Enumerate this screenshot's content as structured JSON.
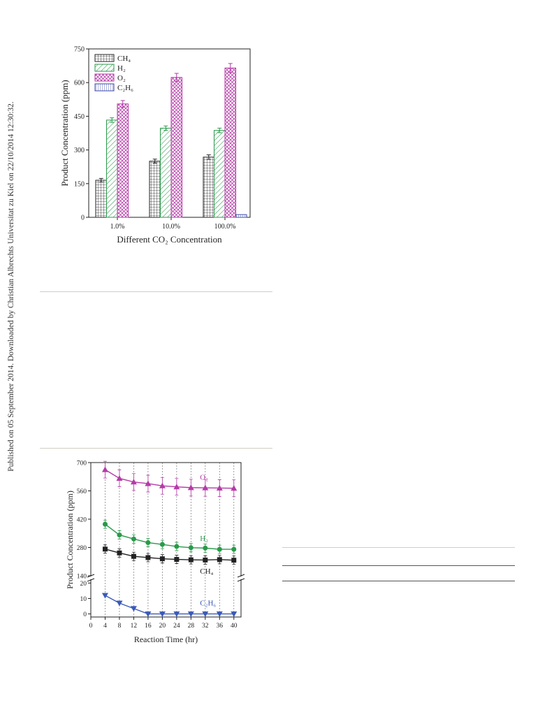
{
  "watermark": "Published on 05 September 2014. Downloaded by Christian Albrechts Universitat zu Kiel on 22/10/2014 12:30:32.",
  "chart_data": [
    {
      "type": "bar",
      "xlabel": "Different CO₂ Concentration",
      "ylabel": "Product Concentration (ppm)",
      "ylim": [
        0,
        750
      ],
      "yticks": [
        0,
        150,
        300,
        450,
        600,
        750
      ],
      "categories": [
        "1.0%",
        "10.0%",
        "100.0%"
      ],
      "legend_position": "top-left",
      "series": [
        {
          "name": "CH₄",
          "values": [
            165,
            250,
            268
          ],
          "errors": [
            8,
            9,
            10
          ],
          "color": "#222222"
        },
        {
          "name": "H₂",
          "values": [
            433,
            397,
            387
          ],
          "errors": [
            10,
            10,
            10
          ],
          "color": "#2a9a4a"
        },
        {
          "name": "O₂",
          "values": [
            505,
            623,
            665
          ],
          "errors": [
            15,
            18,
            20
          ],
          "color": "#b53aa8"
        },
        {
          "name": "C₂H₆",
          "values": [
            0,
            0,
            12
          ],
          "errors": [
            0,
            0,
            0
          ],
          "color": "#3a4aa8"
        }
      ]
    },
    {
      "type": "line",
      "xlabel": "Reaction Time (hr)",
      "ylabel": "Product Concentration (ppm)",
      "xlim": [
        0,
        42
      ],
      "xticks": [
        0,
        4,
        8,
        12,
        16,
        20,
        24,
        28,
        32,
        36,
        40
      ],
      "upper_ylim": [
        140,
        700
      ],
      "upper_yticks": [
        140,
        280,
        420,
        560,
        700
      ],
      "lower_ylim": [
        -2,
        22
      ],
      "lower_yticks": [
        0,
        10,
        20
      ],
      "x": [
        4,
        8,
        12,
        16,
        20,
        24,
        28,
        32,
        36,
        40
      ],
      "series": [
        {
          "name": "O₂",
          "values": [
            665,
            622,
            604,
            596,
            585,
            580,
            576,
            575,
            574,
            573
          ],
          "color": "#b53aa8",
          "marker": "triangle-up"
        },
        {
          "name": "H₂",
          "values": [
            395,
            342,
            322,
            304,
            295,
            285,
            279,
            277,
            271,
            271
          ],
          "color": "#2a9a4a",
          "marker": "circle"
        },
        {
          "name": "CH₄",
          "values": [
            272,
            253,
            236,
            230,
            224,
            221,
            219,
            218,
            220,
            217
          ],
          "color": "#222222",
          "marker": "square"
        },
        {
          "name": "C₂H₆",
          "values": [
            12,
            7,
            3.5,
            0,
            0,
            0,
            0,
            0,
            0,
            0
          ],
          "color": "#3a5ab8",
          "marker": "triangle-down"
        }
      ]
    }
  ]
}
